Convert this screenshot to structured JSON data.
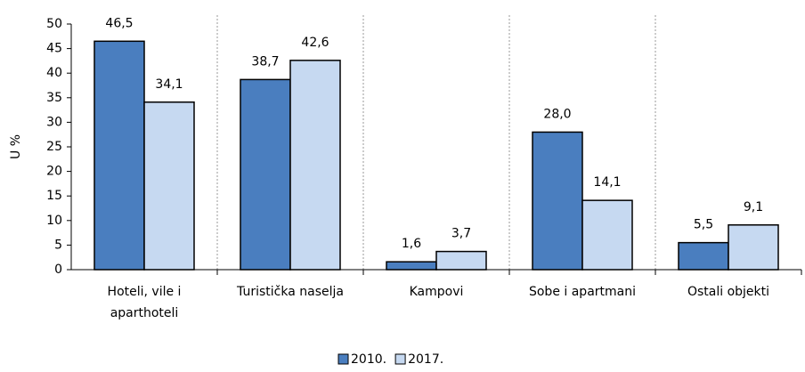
{
  "chart_data": {
    "type": "bar",
    "y_label": "U %",
    "categories": [
      "Hoteli, vile i aparthoteli",
      "Turistička naselja",
      "Kampovi",
      "Sobe i apartmani",
      "Ostali objekti"
    ],
    "series": [
      {
        "name": "2010.",
        "color": "#4a7ebf",
        "values": [
          46.5,
          38.7,
          1.6,
          28.0,
          5.5
        ],
        "value_labels": [
          "46,5",
          "38,7",
          "1,6",
          "28,0",
          "5,5"
        ]
      },
      {
        "name": "2017.",
        "color": "#c6d9f1",
        "values": [
          34.1,
          42.6,
          3.7,
          14.1,
          9.1
        ],
        "value_labels": [
          "34,1",
          "42,6",
          "3,7",
          "14,1",
          "9,1"
        ]
      }
    ],
    "ylim": [
      0,
      50
    ],
    "yticks": [
      0,
      5,
      10,
      15,
      20,
      25,
      30,
      35,
      40,
      45,
      50
    ],
    "grid": true
  }
}
